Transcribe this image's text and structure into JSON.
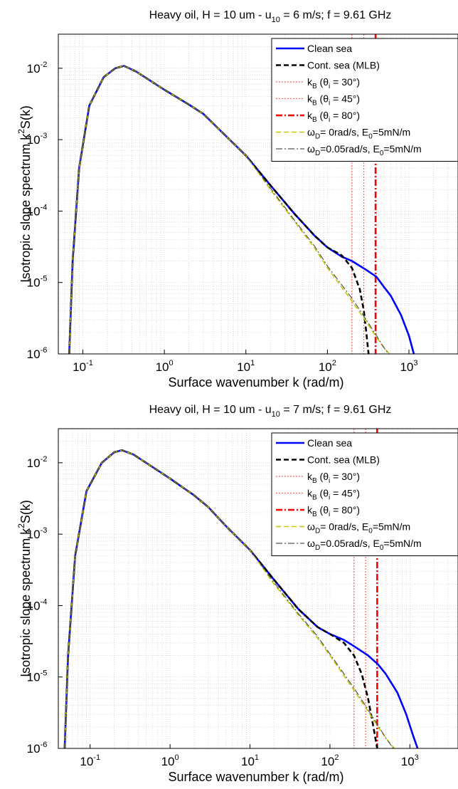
{
  "chart_data": [
    {
      "type": "line",
      "title": {
        "pre": "Heavy oil, H = 10 um  -  u",
        "sub": "10",
        "post": " = 6 m/s; f = 9.61 GHz"
      },
      "xlabel": "Surface wavenumber k (rad/m)",
      "ylabel": {
        "pre": "Isotropic slope spectrum k",
        "sup": "2",
        "post": "S(k)"
      },
      "xscale": "log",
      "yscale": "log",
      "xlim": [
        0.05,
        4000
      ],
      "ylim": [
        1e-06,
        0.03
      ],
      "grid": true,
      "legend_position": "top-right",
      "x_ticks": [
        {
          "base": "10",
          "exp": "-1"
        },
        {
          "base": "10",
          "exp": "0"
        },
        {
          "base": "10",
          "exp": "1"
        },
        {
          "base": "10",
          "exp": "2"
        },
        {
          "base": "10",
          "exp": "3"
        }
      ],
      "y_ticks": [
        {
          "base": "10",
          "exp": "-6"
        },
        {
          "base": "10",
          "exp": "-5"
        },
        {
          "base": "10",
          "exp": "-4"
        },
        {
          "base": "10",
          "exp": "-3"
        },
        {
          "base": "10",
          "exp": "-2"
        }
      ],
      "legend": [
        {
          "text": "Clean sea"
        },
        {
          "text": "Cont. sea (MLB)"
        },
        {
          "pre": "k",
          "sub": "B",
          "post": " (θ",
          "sub2": "i",
          "post2": " = 30°)"
        },
        {
          "pre": "k",
          "sub": "B",
          "post": " (θ",
          "sub2": "i",
          "post2": " = 45°)"
        },
        {
          "pre": "k",
          "sub": "B",
          "post": " (θ",
          "sub2": "i",
          "post2": " = 80°)"
        },
        {
          "pre": "ω",
          "sub": "D",
          "post": "=   0rad/s, E",
          "sub2": "0",
          "post2": "=5mN/m"
        },
        {
          "pre": "ω",
          "sub": "D",
          "post": "=0.05rad/s, E",
          "sub2": "0",
          "post2": "=5mN/m"
        }
      ],
      "series": [
        {
          "color": "#0000ff",
          "style": "solid",
          "width": 2.6,
          "points": [
            [
              0.068,
              1e-06
            ],
            [
              0.075,
              2e-05
            ],
            [
              0.09,
              0.0004
            ],
            [
              0.12,
              0.003
            ],
            [
              0.18,
              0.0075
            ],
            [
              0.25,
              0.01
            ],
            [
              0.32,
              0.0108
            ],
            [
              0.45,
              0.009
            ],
            [
              0.7,
              0.0065
            ],
            [
              1,
              0.005
            ],
            [
              2,
              0.0031
            ],
            [
              3,
              0.0023
            ],
            [
              5,
              0.0013
            ],
            [
              10,
              0.0006
            ],
            [
              20,
              0.00023
            ],
            [
              40,
              9e-05
            ],
            [
              70,
              4.5e-05
            ],
            [
              100,
              3.1e-05
            ],
            [
              150,
              2.3e-05
            ],
            [
              200,
              2e-05
            ],
            [
              300,
              1.5e-05
            ],
            [
              400,
              1.2e-05
            ],
            [
              500,
              8.5e-06
            ],
            [
              600,
              6.5e-06
            ],
            [
              800,
              3.5e-06
            ],
            [
              1000,
              1.8e-06
            ],
            [
              1150,
              1e-06
            ]
          ]
        },
        {
          "color": "#000000",
          "style": "dash",
          "width": 2.6,
          "points": [
            [
              0.068,
              1e-06
            ],
            [
              0.075,
              2e-05
            ],
            [
              0.09,
              0.0004
            ],
            [
              0.12,
              0.003
            ],
            [
              0.18,
              0.0075
            ],
            [
              0.25,
              0.01
            ],
            [
              0.32,
              0.0108
            ],
            [
              0.45,
              0.009
            ],
            [
              0.7,
              0.0065
            ],
            [
              1,
              0.005
            ],
            [
              2,
              0.0031
            ],
            [
              3,
              0.0023
            ],
            [
              5,
              0.0013
            ],
            [
              10,
              0.0006
            ],
            [
              20,
              0.00023
            ],
            [
              40,
              9e-05
            ],
            [
              70,
              4.5e-05
            ],
            [
              100,
              3.1e-05
            ],
            [
              150,
              2.4e-05
            ],
            [
              200,
              1.6e-05
            ],
            [
              250,
              8e-06
            ],
            [
              280,
              4e-06
            ],
            [
              300,
              2e-06
            ],
            [
              320,
              1e-06
            ]
          ]
        },
        {
          "color": "#c8c800",
          "style": "dash",
          "width": 1.6,
          "points": [
            [
              0.068,
              1e-06
            ],
            [
              0.075,
              2e-05
            ],
            [
              0.09,
              0.0004
            ],
            [
              0.12,
              0.003
            ],
            [
              0.18,
              0.0075
            ],
            [
              0.25,
              0.01
            ],
            [
              0.32,
              0.0108
            ],
            [
              0.45,
              0.009
            ],
            [
              0.7,
              0.0065
            ],
            [
              1,
              0.005
            ],
            [
              2,
              0.0031
            ],
            [
              3,
              0.0023
            ],
            [
              5,
              0.0013
            ],
            [
              10,
              0.0006
            ],
            [
              20,
              0.0002
            ],
            [
              40,
              7e-05
            ],
            [
              70,
              3e-05
            ],
            [
              100,
              1.6e-05
            ],
            [
              200,
              5.5e-06
            ],
            [
              300,
              2.8e-06
            ],
            [
              400,
              1.7e-06
            ],
            [
              500,
              1.2e-06
            ],
            [
              580,
              1e-06
            ]
          ]
        },
        {
          "color": "#555555",
          "style": "dashdot",
          "width": 1.2,
          "points": [
            [
              0.068,
              1e-06
            ],
            [
              0.075,
              2e-05
            ],
            [
              0.09,
              0.0004
            ],
            [
              0.12,
              0.003
            ],
            [
              0.18,
              0.0075
            ],
            [
              0.25,
              0.01
            ],
            [
              0.32,
              0.0108
            ],
            [
              0.45,
              0.009
            ],
            [
              0.7,
              0.0065
            ],
            [
              1,
              0.005
            ],
            [
              2,
              0.0031
            ],
            [
              3,
              0.0023
            ],
            [
              5,
              0.0013
            ],
            [
              10,
              0.0006
            ],
            [
              20,
              0.00021
            ],
            [
              40,
              7.3e-05
            ],
            [
              70,
              3.2e-05
            ],
            [
              100,
              1.7e-05
            ],
            [
              200,
              6e-06
            ],
            [
              300,
              3e-06
            ],
            [
              400,
              1.8e-06
            ],
            [
              500,
              1.2e-06
            ],
            [
              560,
              1e-06
            ]
          ]
        }
      ],
      "vlines": [
        {
          "x": 200,
          "color": "#ff6060",
          "style": "dot",
          "width": 1.2
        },
        {
          "x": 280,
          "color": "#ff6060",
          "style": "dot",
          "width": 1.2
        },
        {
          "x": 390,
          "color": "#ff0000",
          "style": "dashdot",
          "width": 2.6
        }
      ]
    },
    {
      "type": "line",
      "title": {
        "pre": "Heavy oil, H = 10 um  -  u",
        "sub": "10",
        "post": " = 7 m/s; f = 9.61 GHz"
      },
      "xlabel": "Surface wavenumber k (rad/m)",
      "ylabel": {
        "pre": "Isotropic slope spectrum k",
        "sup": "2",
        "post": "S(k)"
      },
      "xscale": "log",
      "yscale": "log",
      "xlim": [
        0.04,
        4000
      ],
      "ylim": [
        1e-06,
        0.03
      ],
      "grid": true,
      "legend_position": "top-right",
      "x_ticks": [
        {
          "base": "10",
          "exp": "-1"
        },
        {
          "base": "10",
          "exp": "0"
        },
        {
          "base": "10",
          "exp": "1"
        },
        {
          "base": "10",
          "exp": "2"
        },
        {
          "base": "10",
          "exp": "3"
        }
      ],
      "y_ticks": [
        {
          "base": "10",
          "exp": "-6"
        },
        {
          "base": "10",
          "exp": "-5"
        },
        {
          "base": "10",
          "exp": "-4"
        },
        {
          "base": "10",
          "exp": "-3"
        },
        {
          "base": "10",
          "exp": "-2"
        }
      ],
      "legend": [
        {
          "text": "Clean sea"
        },
        {
          "text": "Cont. sea (MLB)"
        },
        {
          "pre": "k",
          "sub": "B",
          "post": " (θ",
          "sub2": "i",
          "post2": " = 30°)"
        },
        {
          "pre": "k",
          "sub": "B",
          "post": " (θ",
          "sub2": "i",
          "post2": " = 45°)"
        },
        {
          "pre": "k",
          "sub": "B",
          "post": " (θ",
          "sub2": "i",
          "post2": " = 80°)"
        },
        {
          "pre": "ω",
          "sub": "D",
          "post": "=   0rad/s, E",
          "sub2": "0",
          "post2": "=5mN/m"
        },
        {
          "pre": "ω",
          "sub": "D",
          "post": "=0.05rad/s, E",
          "sub2": "0",
          "post2": "=5mN/m"
        }
      ],
      "series": [
        {
          "color": "#0000ff",
          "style": "solid",
          "width": 2.6,
          "points": [
            [
              0.048,
              1e-06
            ],
            [
              0.053,
              2e-05
            ],
            [
              0.065,
              0.0005
            ],
            [
              0.09,
              0.004
            ],
            [
              0.14,
              0.01
            ],
            [
              0.2,
              0.014
            ],
            [
              0.25,
              0.015
            ],
            [
              0.35,
              0.013
            ],
            [
              0.5,
              0.01
            ],
            [
              1,
              0.006
            ],
            [
              2,
              0.0035
            ],
            [
              3,
              0.0024
            ],
            [
              5,
              0.0013
            ],
            [
              10,
              0.0006
            ],
            [
              20,
              0.00023
            ],
            [
              40,
              9e-05
            ],
            [
              70,
              5e-05
            ],
            [
              100,
              4e-05
            ],
            [
              150,
              3.3e-05
            ],
            [
              200,
              2.7e-05
            ],
            [
              300,
              2e-05
            ],
            [
              400,
              1.5e-05
            ],
            [
              500,
              1.1e-05
            ],
            [
              700,
              6e-06
            ],
            [
              900,
              3e-06
            ],
            [
              1100,
              1.5e-06
            ],
            [
              1250,
              1e-06
            ]
          ]
        },
        {
          "color": "#000000",
          "style": "dash",
          "width": 2.6,
          "points": [
            [
              0.048,
              1e-06
            ],
            [
              0.053,
              2e-05
            ],
            [
              0.065,
              0.0005
            ],
            [
              0.09,
              0.004
            ],
            [
              0.14,
              0.01
            ],
            [
              0.2,
              0.014
            ],
            [
              0.25,
              0.015
            ],
            [
              0.35,
              0.013
            ],
            [
              0.5,
              0.01
            ],
            [
              1,
              0.006
            ],
            [
              2,
              0.0035
            ],
            [
              3,
              0.0024
            ],
            [
              5,
              0.0013
            ],
            [
              10,
              0.0006
            ],
            [
              20,
              0.00023
            ],
            [
              40,
              9e-05
            ],
            [
              70,
              5e-05
            ],
            [
              100,
              4e-05
            ],
            [
              150,
              3e-05
            ],
            [
              200,
              2e-05
            ],
            [
              250,
              1.1e-05
            ],
            [
              300,
              5e-06
            ],
            [
              350,
              2e-06
            ],
            [
              390,
              1e-06
            ]
          ]
        },
        {
          "color": "#c8c800",
          "style": "dash",
          "width": 1.6,
          "points": [
            [
              0.048,
              1e-06
            ],
            [
              0.053,
              2e-05
            ],
            [
              0.065,
              0.0005
            ],
            [
              0.09,
              0.004
            ],
            [
              0.14,
              0.01
            ],
            [
              0.2,
              0.014
            ],
            [
              0.25,
              0.015
            ],
            [
              0.35,
              0.013
            ],
            [
              0.5,
              0.01
            ],
            [
              1,
              0.006
            ],
            [
              2,
              0.0035
            ],
            [
              3,
              0.0024
            ],
            [
              5,
              0.0013
            ],
            [
              10,
              0.0006
            ],
            [
              20,
              0.0002
            ],
            [
              40,
              7.5e-05
            ],
            [
              70,
              3.5e-05
            ],
            [
              100,
              2e-05
            ],
            [
              200,
              6.5e-06
            ],
            [
              300,
              3.3e-06
            ],
            [
              400,
              2e-06
            ],
            [
              500,
              1.4e-06
            ],
            [
              640,
              1e-06
            ]
          ]
        },
        {
          "color": "#555555",
          "style": "dashdot",
          "width": 1.2,
          "points": [
            [
              0.048,
              1e-06
            ],
            [
              0.053,
              2e-05
            ],
            [
              0.065,
              0.0005
            ],
            [
              0.09,
              0.004
            ],
            [
              0.14,
              0.01
            ],
            [
              0.2,
              0.014
            ],
            [
              0.25,
              0.015
            ],
            [
              0.35,
              0.013
            ],
            [
              0.5,
              0.01
            ],
            [
              1,
              0.006
            ],
            [
              2,
              0.0035
            ],
            [
              3,
              0.0024
            ],
            [
              5,
              0.0013
            ],
            [
              10,
              0.0006
            ],
            [
              20,
              0.00021
            ],
            [
              40,
              7.8e-05
            ],
            [
              70,
              3.7e-05
            ],
            [
              100,
              2.1e-05
            ],
            [
              200,
              7e-06
            ],
            [
              300,
              3.5e-06
            ],
            [
              400,
              2.1e-06
            ],
            [
              500,
              1.4e-06
            ],
            [
              620,
              1e-06
            ]
          ]
        }
      ],
      "vlines": [
        {
          "x": 200,
          "color": "#ff6060",
          "style": "dot",
          "width": 1.2
        },
        {
          "x": 280,
          "color": "#ff6060",
          "style": "dot",
          "width": 1.2
        },
        {
          "x": 390,
          "color": "#ff0000",
          "style": "dashdot",
          "width": 2.6
        }
      ]
    }
  ]
}
